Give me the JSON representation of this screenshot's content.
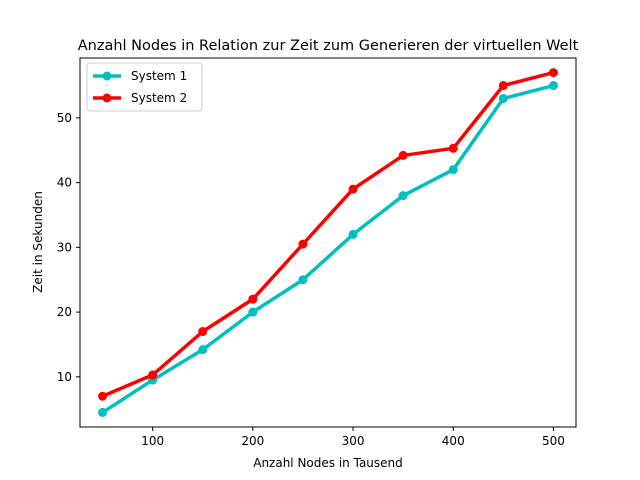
{
  "chart_data": {
    "type": "line",
    "title": "Anzahl Nodes in Relation zur Zeit zum Generieren der virtuellen Welt",
    "xlabel": "Anzahl Nodes in Tausend",
    "ylabel": "Zeit in Sekunden",
    "x": [
      50,
      100,
      150,
      200,
      250,
      300,
      350,
      400,
      450,
      500
    ],
    "xlim": [
      27.5,
      522.5
    ],
    "ylim": [
      2.25,
      59.25
    ],
    "xticks": [
      100,
      200,
      300,
      400,
      500
    ],
    "yticks": [
      10,
      20,
      30,
      40,
      50
    ],
    "grid": false,
    "legend_position": "top-left",
    "series": [
      {
        "name": "System 1",
        "color": "#00bfbf",
        "values": [
          4.5,
          9.5,
          14.2,
          20.0,
          25.0,
          32.0,
          38.0,
          42.0,
          53.0,
          55.0
        ]
      },
      {
        "name": "System 2",
        "color": "#ff0000",
        "values": [
          7.0,
          10.3,
          17.0,
          22.0,
          30.5,
          39.0,
          44.2,
          45.3,
          55.0,
          57.0
        ]
      }
    ]
  }
}
